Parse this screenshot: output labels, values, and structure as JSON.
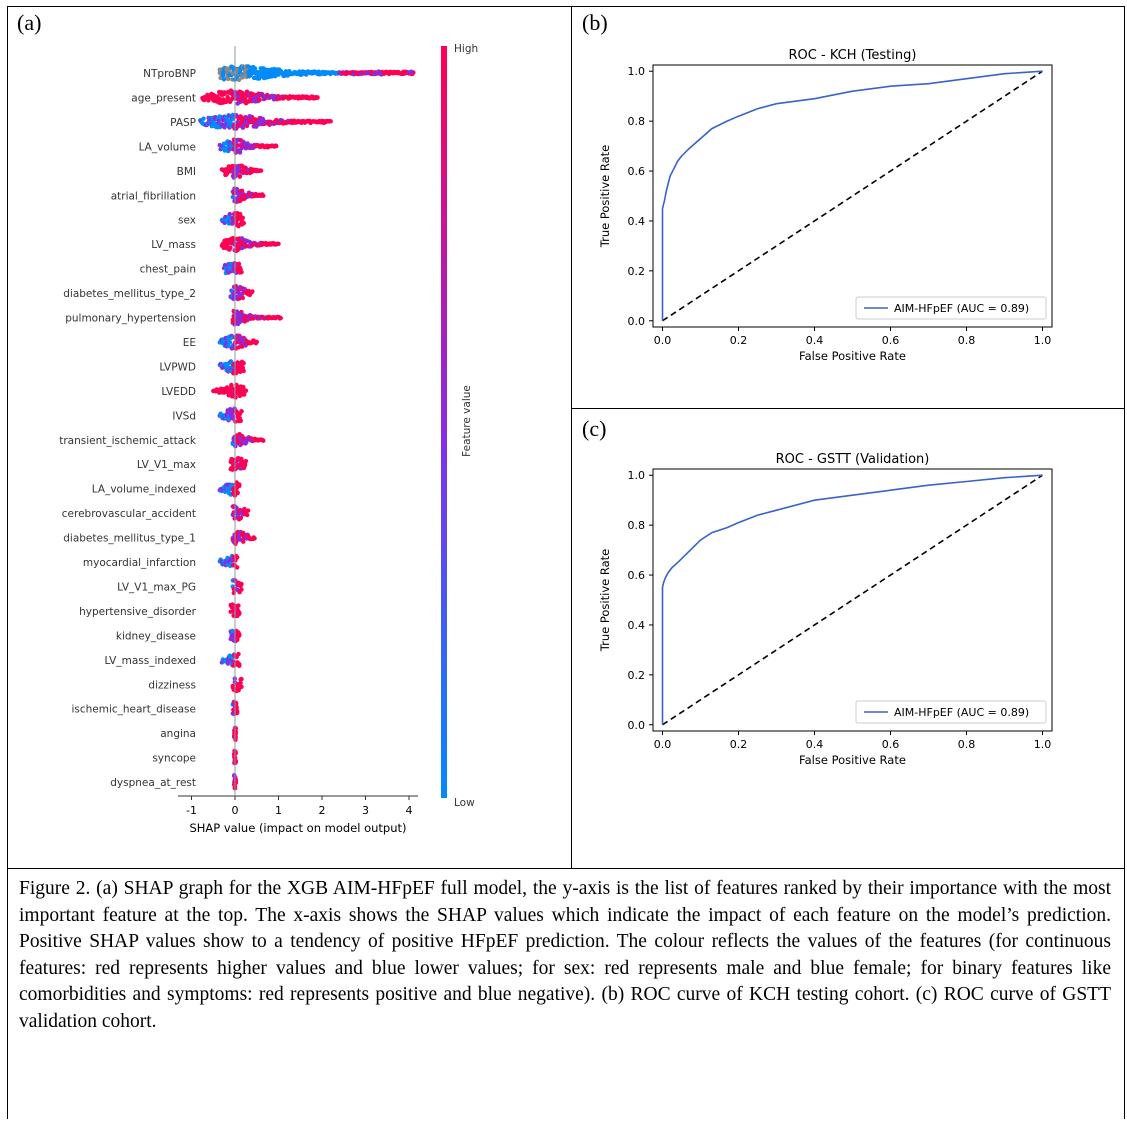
{
  "panels": {
    "a": {
      "letter": "(a)"
    },
    "b": {
      "letter": "(b)"
    },
    "c": {
      "letter": "(c)"
    }
  },
  "caption": "Figure 2. (a) SHAP graph for the XGB AIM-HFpEF full model, the y-axis is the list of features ranked by their importance with the most important feature at the top. The x-axis shows the SHAP values which indicate the impact of each feature on the model’s prediction. Positive SHAP values show to a tendency of positive HFpEF prediction. The colour reflects the values of the features (for continuous features: red represents higher values and blue lower values; for sex: red represents male and blue female; for binary features like comorbidities and symptoms: red represents positive and blue negative). (b) ROC curve of KCH testing cohort. (c) ROC curve of GSTT validation cohort.",
  "colors": {
    "high": "#ff0052",
    "low": "#008bfb",
    "mid": "#8a2be2",
    "roc_line": "#3a62c9"
  },
  "chart_data": [
    {
      "type": "scatter",
      "subtype": "shap-beeswarm",
      "xlabel": "SHAP value (impact on model output)",
      "xticks": [
        "-1",
        "0",
        "1",
        "2",
        "3",
        "4"
      ],
      "xlim": [
        -1.1,
        4.3
      ],
      "colorbar": {
        "label": "Feature value",
        "high": "High",
        "low": "Low"
      },
      "features": [
        {
          "name": "NTproBNP",
          "min": -0.35,
          "max": 4.1,
          "pos": [
            2.5,
            4.1
          ]
        },
        {
          "name": "age_present",
          "min": -0.75,
          "max": 1.9
        },
        {
          "name": "PASP",
          "min": -0.8,
          "max": 2.2
        },
        {
          "name": "LA_volume",
          "min": -0.35,
          "max": 0.95
        },
        {
          "name": "BMI",
          "min": -0.3,
          "max": 0.6
        },
        {
          "name": "atrial_fibrillation",
          "min": -0.05,
          "max": 0.65
        },
        {
          "name": "sex",
          "min": -0.3,
          "max": 0.2
        },
        {
          "name": "LV_mass",
          "min": -0.3,
          "max": 1.0
        },
        {
          "name": "chest_pain",
          "min": -0.25,
          "max": 0.15
        },
        {
          "name": "diabetes_mellitus_type_2",
          "min": -0.1,
          "max": 0.4
        },
        {
          "name": "pulmonary_hypertension",
          "min": -0.05,
          "max": 1.05
        },
        {
          "name": "EE",
          "min": -0.35,
          "max": 0.5
        },
        {
          "name": "LVPWD",
          "min": -0.35,
          "max": 0.2
        },
        {
          "name": "LVEDD",
          "min": -0.5,
          "max": 0.25
        },
        {
          "name": "IVSd",
          "min": -0.35,
          "max": 0.15
        },
        {
          "name": "transient_ischemic_attack",
          "min": -0.05,
          "max": 0.65
        },
        {
          "name": "LV_V1_max",
          "min": -0.1,
          "max": 0.25
        },
        {
          "name": "LA_volume_indexed",
          "min": -0.35,
          "max": 0.1
        },
        {
          "name": "cerebrovascular_accident",
          "min": -0.05,
          "max": 0.3
        },
        {
          "name": "diabetes_mellitus_type_1",
          "min": -0.05,
          "max": 0.45
        },
        {
          "name": "myocardial_infarction",
          "min": -0.35,
          "max": 0.05
        },
        {
          "name": "LV_V1_max_PG",
          "min": -0.05,
          "max": 0.15
        },
        {
          "name": "hypertensive_disorder",
          "min": -0.1,
          "max": 0.1
        },
        {
          "name": "kidney_disease",
          "min": -0.1,
          "max": 0.1
        },
        {
          "name": "LV_mass_indexed",
          "min": -0.3,
          "max": 0.1
        },
        {
          "name": "dizziness",
          "min": -0.05,
          "max": 0.15
        },
        {
          "name": "ischemic_heart_disease",
          "min": -0.05,
          "max": 0.05
        },
        {
          "name": "angina",
          "min": -0.02,
          "max": 0.02
        },
        {
          "name": "syncope",
          "min": -0.02,
          "max": 0.02
        },
        {
          "name": "dyspnea_at_rest",
          "min": -0.02,
          "max": 0.02
        }
      ]
    },
    {
      "type": "line",
      "title": "ROC - KCH (Testing)",
      "xlabel": "False Positive Rate",
      "ylabel": "True Positive Rate",
      "xlim": [
        0,
        1
      ],
      "ylim": [
        0,
        1
      ],
      "ticks": [
        "0.0",
        "0.2",
        "0.4",
        "0.6",
        "0.8",
        "1.0"
      ],
      "legend": "AIM-HFpEF (AUC = 0.89)",
      "legend_position": "lower-right",
      "x": [
        0,
        0,
        0.005,
        0.01,
        0.015,
        0.02,
        0.03,
        0.04,
        0.05,
        0.07,
        0.1,
        0.13,
        0.17,
        0.2,
        0.25,
        0.3,
        0.4,
        0.5,
        0.6,
        0.7,
        0.8,
        0.9,
        1.0
      ],
      "y": [
        0,
        0.45,
        0.48,
        0.52,
        0.55,
        0.58,
        0.61,
        0.64,
        0.66,
        0.69,
        0.73,
        0.77,
        0.8,
        0.82,
        0.85,
        0.87,
        0.89,
        0.92,
        0.94,
        0.95,
        0.97,
        0.99,
        1.0
      ]
    },
    {
      "type": "line",
      "title": "ROC - GSTT (Validation)",
      "xlabel": "False Positive Rate",
      "ylabel": "True Positive Rate",
      "xlim": [
        0,
        1
      ],
      "ylim": [
        0,
        1
      ],
      "ticks": [
        "0.0",
        "0.2",
        "0.4",
        "0.6",
        "0.8",
        "1.0"
      ],
      "legend": "AIM-HFpEF (AUC = 0.89)",
      "legend_position": "lower-right",
      "x": [
        0,
        0,
        0.003,
        0.008,
        0.015,
        0.025,
        0.04,
        0.06,
        0.08,
        0.1,
        0.13,
        0.17,
        0.2,
        0.25,
        0.3,
        0.4,
        0.5,
        0.6,
        0.7,
        0.8,
        0.9,
        1.0
      ],
      "y": [
        0,
        0.55,
        0.57,
        0.59,
        0.61,
        0.63,
        0.65,
        0.68,
        0.71,
        0.74,
        0.77,
        0.79,
        0.81,
        0.84,
        0.86,
        0.9,
        0.92,
        0.94,
        0.96,
        0.975,
        0.99,
        1.0
      ]
    }
  ]
}
